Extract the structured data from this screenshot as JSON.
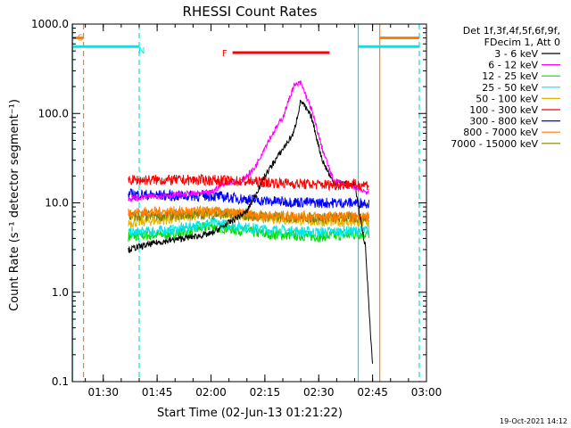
{
  "chart_data": {
    "type": "line",
    "title": "RHESSI Count Rates",
    "xlabel": "Start Time (02-Jun-13 01:21:22)",
    "ylabel": "Count Rate (s⁻¹ detector segment⁻¹)",
    "ylog": true,
    "ylim": [
      0.1,
      1000
    ],
    "xlim": [
      "01:21:22",
      "03:00:00"
    ],
    "y_tick_labels": [
      "0.1",
      "1.0",
      "10.0",
      "100.0",
      "1000.0"
    ],
    "x_tick_labels": [
      "01:30",
      "01:45",
      "02:00",
      "02:15",
      "02:30",
      "02:45",
      "03:00"
    ],
    "legend_header": [
      "Det 1f,3f,4f,5f,6f,9f,",
      "FDecim 1, Att 0"
    ],
    "legend_position": "right",
    "series": [
      {
        "name": "3 - 6 keV",
        "color": "#000000",
        "points": [
          [
            "01:37",
            3.0
          ],
          [
            "01:45",
            3.6
          ],
          [
            "02:00",
            4.5
          ],
          [
            "02:10",
            8
          ],
          [
            "02:15",
            20
          ],
          [
            "02:20",
            40
          ],
          [
            "02:23",
            60
          ],
          [
            "02:25",
            140
          ],
          [
            "02:28",
            90
          ],
          [
            "02:31",
            30
          ],
          [
            "02:34",
            17
          ],
          [
            "02:40",
            16
          ],
          [
            "02:43",
            3.2
          ],
          [
            "02:45",
            0.15
          ]
        ]
      },
      {
        "name": "6 - 12 keV",
        "color": "#ff00ff",
        "points": [
          [
            "01:37",
            11
          ],
          [
            "01:45",
            12
          ],
          [
            "02:00",
            13
          ],
          [
            "02:04",
            17
          ],
          [
            "02:08",
            17
          ],
          [
            "02:12",
            24
          ],
          [
            "02:16",
            50
          ],
          [
            "02:20",
            90
          ],
          [
            "02:23",
            200
          ],
          [
            "02:25",
            220
          ],
          [
            "02:28",
            110
          ],
          [
            "02:31",
            40
          ],
          [
            "02:34",
            18
          ],
          [
            "02:40",
            15
          ],
          [
            "02:44",
            13
          ]
        ]
      },
      {
        "name": "12 - 25 keV",
        "color": "#00dd00",
        "points": [
          [
            "01:37",
            4.2
          ],
          [
            "01:50",
            4.5
          ],
          [
            "02:00",
            5.5
          ],
          [
            "02:15",
            4.5
          ],
          [
            "02:30",
            4.2
          ],
          [
            "02:44",
            4.5
          ]
        ]
      },
      {
        "name": "25 - 50 keV",
        "color": "#00e5e5",
        "points": [
          [
            "01:37",
            4.6
          ],
          [
            "01:50",
            5.0
          ],
          [
            "02:00",
            6.0
          ],
          [
            "02:15",
            5.0
          ],
          [
            "02:30",
            4.7
          ],
          [
            "02:44",
            4.9
          ]
        ]
      },
      {
        "name": "50 - 100 keV",
        "color": "#e6b400",
        "points": [
          [
            "01:37",
            6.0
          ],
          [
            "01:50",
            6.6
          ],
          [
            "02:00",
            8.0
          ],
          [
            "02:15",
            6.8
          ],
          [
            "02:30",
            6.2
          ],
          [
            "02:44",
            6.0
          ]
        ]
      },
      {
        "name": "100 - 300 keV",
        "color": "#ff0000",
        "points": [
          [
            "01:37",
            18
          ],
          [
            "01:50",
            18
          ],
          [
            "02:00",
            18
          ],
          [
            "02:15",
            17
          ],
          [
            "02:30",
            16
          ],
          [
            "02:44",
            16
          ]
        ]
      },
      {
        "name": "300 - 800 keV",
        "color": "#0000ff",
        "points": [
          [
            "01:37",
            12.5
          ],
          [
            "01:50",
            12
          ],
          [
            "02:00",
            12
          ],
          [
            "02:15",
            10.5
          ],
          [
            "02:30",
            10
          ],
          [
            "02:44",
            10
          ]
        ]
      },
      {
        "name": "800 - 7000 keV",
        "color": "#ff7f00",
        "points": [
          [
            "01:37",
            7.8
          ],
          [
            "01:50",
            8
          ],
          [
            "02:00",
            8
          ],
          [
            "02:15",
            7.2
          ],
          [
            "02:30",
            7
          ],
          [
            "02:44",
            7
          ]
        ]
      },
      {
        "name": "7000 - 15000 keV",
        "color": "#808000",
        "points": [
          [
            "01:37",
            7.0
          ],
          [
            "01:50",
            7.3
          ],
          [
            "02:00",
            7.5
          ],
          [
            "02:15",
            7.0
          ],
          [
            "02:30",
            6.8
          ],
          [
            "02:44",
            6.8
          ]
        ]
      }
    ],
    "annotations": [
      {
        "label": "S",
        "color": "#ff7f00",
        "from": "01:21:22",
        "to": "01:24:30",
        "y": 700
      },
      {
        "label": "N",
        "color": "#00e5e5",
        "from": "01:21:22",
        "to": "01:40",
        "y": 560
      },
      {
        "label": "F",
        "color": "#ff0000",
        "from": "02:06",
        "to": "02:33",
        "y": 480
      },
      {
        "label": "",
        "color": "#00e5e5",
        "from": "02:41",
        "to": "02:58",
        "y": 560
      },
      {
        "label": "",
        "color": "#ff7f00",
        "from": "02:47",
        "to": "02:58",
        "y": 700
      }
    ],
    "vertical_lines": [
      {
        "t": "01:21:30",
        "color": "#00e5e5",
        "style": "solid"
      },
      {
        "t": "01:24:30",
        "color": "#ff7f00",
        "style": "dashed"
      },
      {
        "t": "01:40:00",
        "color": "#00e5e5",
        "style": "dashed"
      },
      {
        "t": "02:41:00",
        "color": "#00e5e5",
        "style": "solid"
      },
      {
        "t": "02:47:00",
        "color": "#ff7f00",
        "style": "solid"
      },
      {
        "t": "02:58:00",
        "color": "#00e5e5",
        "style": "dashed"
      }
    ]
  },
  "timestamp": "19-Oct-2021 14:12"
}
